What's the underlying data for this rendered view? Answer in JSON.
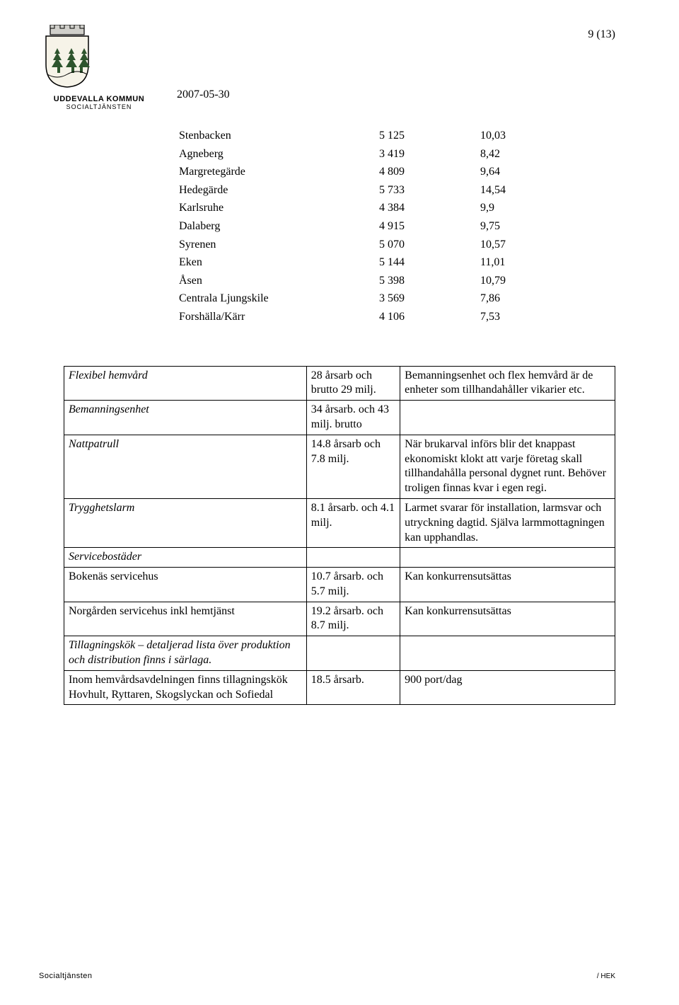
{
  "page_number": "9 (13)",
  "date": "2007-05-30",
  "logo": {
    "org": "UDDEVALLA KOMMUN",
    "dept": "SOCIALTJÄNSTEN",
    "crest_colors": {
      "shield": "#f6f3e8",
      "outline": "#000000",
      "trees": "#2e552e",
      "wall": "#d0cfca"
    }
  },
  "table1": {
    "rows": [
      {
        "name": "Stenbacken",
        "a": "5 125",
        "b": "10,03"
      },
      {
        "name": "Agneberg",
        "a": "3 419",
        "b": "8,42"
      },
      {
        "name": "Margretegärde",
        "a": "4 809",
        "b": "9,64"
      },
      {
        "name": "Hedegärde",
        "a": "5 733",
        "b": "14,54"
      },
      {
        "name": "Karlsruhe",
        "a": "4 384",
        "b": "9,9"
      },
      {
        "name": "Dalaberg",
        "a": "4 915",
        "b": "9,75"
      },
      {
        "name": "Syrenen",
        "a": "5 070",
        "b": "10,57"
      },
      {
        "name": "Eken",
        "a": "5 144",
        "b": "11,01"
      },
      {
        "name": "Åsen",
        "a": "5 398",
        "b": "10,79"
      },
      {
        "name": "Centrala Ljungskile",
        "a": "3 569",
        "b": "7,86"
      },
      {
        "name": "Forshälla/Kärr",
        "a": "4 106",
        "b": "7,53"
      }
    ]
  },
  "table2": {
    "rows": [
      {
        "c1": "Flexibel hemvård",
        "c1_italic": true,
        "c2": "28 årsarb och brutto 29 milj.",
        "c3": "Bemanningsenhet och flex hemvård är de enheter som tillhandahåller vikarier etc."
      },
      {
        "c1": "Bemanningsenhet",
        "c1_italic": true,
        "c2": "34 årsarb. och 43 milj. brutto",
        "c3": ""
      },
      {
        "c1": "Nattpatrull",
        "c1_italic": true,
        "c2": "14.8 årsarb och 7.8 milj.",
        "c3": "När brukarval införs blir det knappast ekonomiskt klokt att varje företag skall tillhandahålla personal dygnet runt. Behöver troligen finnas kvar i egen regi."
      },
      {
        "c1": "Trygghetslarm",
        "c1_italic": true,
        "c2": "8.1 årsarb. och 4.1 milj.",
        "c3": "Larmet svarar för installation, larmsvar och utryckning dagtid. Själva larmmottagningen kan upphandlas."
      },
      {
        "c1": "Servicebostäder",
        "c1_italic": true,
        "c2": "",
        "c3": ""
      },
      {
        "c1": "Bokenäs servicehus",
        "c1_italic": false,
        "c2": "10.7 årsarb. och 5.7 milj.",
        "c3": "Kan konkurrensutsättas"
      },
      {
        "c1": "Norgården servicehus inkl hemtjänst",
        "c1_italic": false,
        "c2": "19.2 årsarb. och 8.7 milj.",
        "c3": "Kan konkurrensutsättas"
      },
      {
        "c1": "Tillagningskök – detaljerad lista över produktion och distribution finns i särlaga.",
        "c1_italic": true,
        "c2": "",
        "c3": ""
      },
      {
        "c1": "Inom hemvårdsavdelningen finns tillagningskök Hovhult, Ryttaren, Skogslyckan och Sofiedal",
        "c1_italic": false,
        "c2": "18.5 årsarb.",
        "c3": "900 port/dag"
      }
    ]
  },
  "footer": {
    "left": "Socialtjänsten",
    "right": "/ HEK"
  }
}
